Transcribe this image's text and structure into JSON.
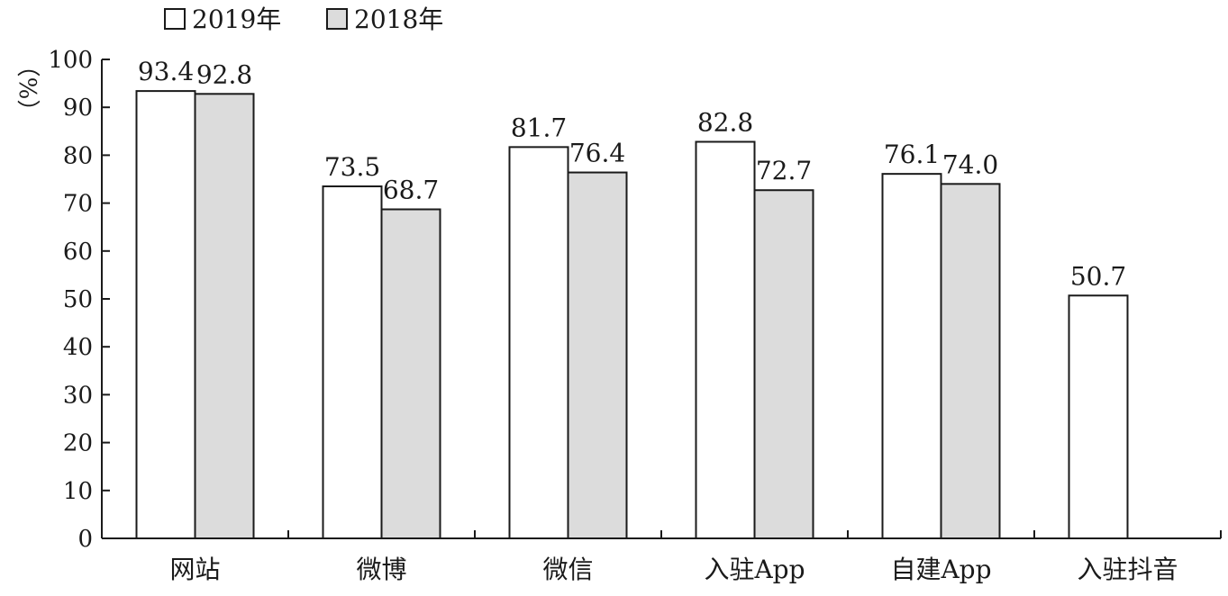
{
  "chart_data": {
    "type": "bar",
    "categories": [
      "网站",
      "微博",
      "微信",
      "入驻App",
      "自建App",
      "入驻抖音"
    ],
    "series": [
      {
        "name": "2019年",
        "values": [
          93.4,
          73.5,
          81.7,
          82.8,
          76.1,
          50.7
        ],
        "color": "#ffffff"
      },
      {
        "name": "2018年",
        "values": [
          92.8,
          68.7,
          76.4,
          72.7,
          74.0,
          null
        ],
        "color": "#dcdcdc"
      }
    ],
    "value_labels": [
      [
        "93.4",
        "73.5",
        "81.7",
        "82.8",
        "76.1",
        "50.7"
      ],
      [
        "92.8",
        "68.7",
        "76.4",
        "72.7",
        "74.0",
        ""
      ]
    ],
    "ylabel": "（%）",
    "ylim": [
      0,
      100
    ],
    "yticks": [
      0,
      10,
      20,
      30,
      40,
      50,
      60,
      70,
      80,
      90,
      100
    ],
    "grid": false,
    "legend_position": "top-left"
  },
  "colors": {
    "axis": "#1a1a1a",
    "bar_outline": "#1a1a1a",
    "bar_2019": "#ffffff",
    "bar_2018": "#dcdcdc"
  }
}
